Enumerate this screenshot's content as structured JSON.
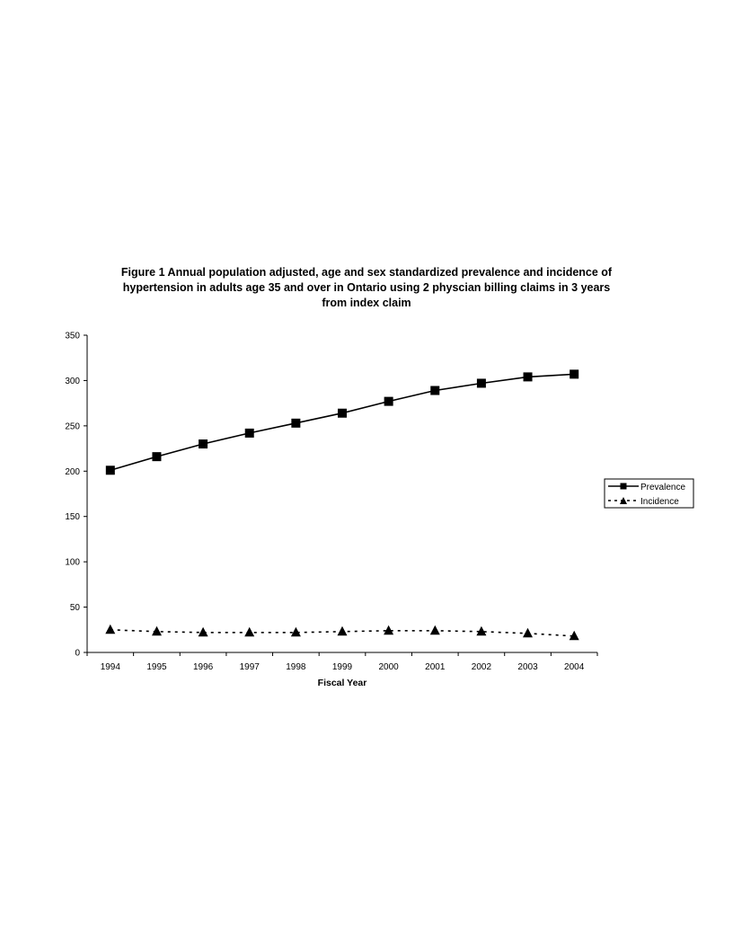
{
  "chart_data": {
    "type": "line",
    "title_lines": [
      "Figure 1   Annual population adjusted, age and sex standardized prevalence and incidence of",
      "hypertension in adults age 35 and over in Ontario using 2 physcian billing claims in 3 years",
      "from index claim"
    ],
    "xlabel": "Fiscal Year",
    "ylabel": "",
    "categories": [
      "1994",
      "1995",
      "1996",
      "1997",
      "1998",
      "1999",
      "2000",
      "2001",
      "2002",
      "2003",
      "2004"
    ],
    "ylim": [
      0,
      350
    ],
    "yticks": [
      0,
      50,
      100,
      150,
      200,
      250,
      300,
      350
    ],
    "grid": false,
    "legend_position": "right",
    "series": [
      {
        "name": "Prevalence",
        "marker": "square",
        "line_style": "solid",
        "color": "#000000",
        "values": [
          201,
          216,
          230,
          242,
          253,
          264,
          277,
          289,
          297,
          304,
          307
        ]
      },
      {
        "name": "Incidence",
        "marker": "triangle",
        "line_style": "dashed",
        "color": "#000000",
        "values": [
          25,
          23,
          22,
          22,
          22,
          23,
          24,
          24,
          23,
          21,
          18
        ]
      }
    ]
  }
}
